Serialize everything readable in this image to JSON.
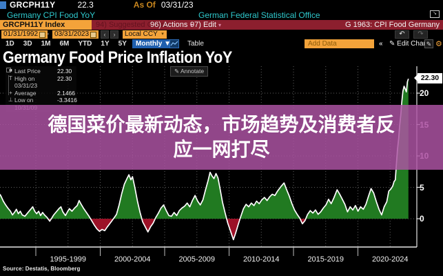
{
  "terminal": {
    "security_ticker": "GRCPH11Y",
    "last_value": "22.3",
    "as_of_label": "As Of",
    "as_of_date": "03/31/23",
    "description": "Germany CPI Food YoY",
    "source_org": "German Federal Statistical Office",
    "command_bar": {
      "ticker_box": "GRCPH11Y Index",
      "suggested_charts": "94) Suggested Charts",
      "actions": "96) Actions",
      "edit": "97) Edit",
      "chart_id": "G 1963: CPI Food Germany"
    },
    "date_bar": {
      "start_date": "01/31/1992",
      "separator": "-",
      "end_date": "03/31/2023",
      "prev": "‹",
      "next": "›",
      "currency": "Local CCY",
      "dropdown_caret": "▾",
      "undo": "↶",
      "redo": "↷"
    },
    "range_bar": {
      "ranges": [
        "1D",
        "3D",
        "1M",
        "6M",
        "YTD",
        "1Y",
        "5Y",
        "Max"
      ],
      "frequency": "Monthly ▼",
      "table": "Table",
      "add_data_placeholder": "Add Data",
      "collapse": "«",
      "edit_chart": "✎ Edit Chart",
      "gear": "⚙",
      "edit_chart_icon_glyph": "✎"
    }
  },
  "chart": {
    "title": "Germany Food Price Inflation YoY",
    "annotate": "✎ Annotate",
    "last_price_tag": "22.30",
    "legend": {
      "rows": [
        {
          "marker": "■",
          "label": "Last Price",
          "value": "22.30"
        },
        {
          "marker": "T",
          "label": "High on 03/31/23",
          "value": "22.30"
        },
        {
          "marker": "+",
          "label": "Average",
          "value": "2.1466"
        },
        {
          "marker": "⊥",
          "label": "Low on 10/31/09",
          "value": "-3.3416"
        }
      ]
    },
    "y_axis": {
      "tick_values": [
        20,
        15,
        10,
        5,
        0
      ],
      "tick_labels": [
        "20",
        "15",
        "10",
        "5",
        "0"
      ]
    },
    "x_axis": {
      "labels": [
        "1995-1999",
        "2000-2004",
        "2005-2009",
        "2010-2014",
        "2015-2019",
        "2020-2024"
      ]
    },
    "source": "Source: Destatis, Bloomberg",
    "colors": {
      "positive_fill": "#217a21",
      "negative_fill": "#9c1127",
      "line": "#ffffff",
      "grid": "rgba(255,255,255,0.38)",
      "axis": "#e8e8e8",
      "accent_orange": "#f3a33a",
      "command_bar_red": "#8c1f2e",
      "cyan_text": "#2fc9cd",
      "frequency_blue": "#1f5fae",
      "overlay_purple": "#ad53a3"
    }
  },
  "overlay_headline": {
    "line1": "德国菜价最新动态，市场趋势及消费者反",
    "line2": "应一网打尽"
  },
  "chart_data": {
    "type": "area",
    "series_name": "GRCPH11Y Index — Germany CPI Food YoY (%, monthly)",
    "x_unit": "year",
    "ylim": [
      -4.5,
      24
    ],
    "y_ticks": [
      0,
      5,
      10,
      15,
      20
    ],
    "x_block_labels": [
      "1995-1999",
      "2000-2004",
      "2005-2009",
      "2010-2014",
      "2015-2019",
      "2020-2024"
    ],
    "last_price": 22.3,
    "high": {
      "date": "03/31/23",
      "value": 22.3
    },
    "average": 2.1466,
    "low": {
      "date": "10/31/09",
      "value": -3.3416
    },
    "points": [
      [
        1992.0,
        3.9
      ],
      [
        1992.1,
        3.5
      ],
      [
        1992.25,
        2.8
      ],
      [
        1992.4,
        2.3
      ],
      [
        1992.6,
        1.7
      ],
      [
        1992.8,
        1.2
      ],
      [
        1992.95,
        0.6
      ],
      [
        1993.1,
        1.0
      ],
      [
        1993.25,
        1.5
      ],
      [
        1993.4,
        0.8
      ],
      [
        1993.55,
        1.2
      ],
      [
        1993.7,
        0.6
      ],
      [
        1993.9,
        0.4
      ],
      [
        1994.1,
        0.9
      ],
      [
        1994.3,
        1.4
      ],
      [
        1994.5,
        1.9
      ],
      [
        1994.65,
        1.2
      ],
      [
        1994.8,
        0.8
      ],
      [
        1994.95,
        1.2
      ],
      [
        1995.1,
        0.5
      ],
      [
        1995.25,
        1.0
      ],
      [
        1995.4,
        0.6
      ],
      [
        1995.6,
        0.2
      ],
      [
        1995.8,
        -0.4
      ],
      [
        1995.95,
        0.1
      ],
      [
        1996.1,
        0.6
      ],
      [
        1996.3,
        1.1
      ],
      [
        1996.5,
        1.6
      ],
      [
        1996.65,
        1.9
      ],
      [
        1996.8,
        1.1
      ],
      [
        1997.0,
        0.5
      ],
      [
        1997.15,
        1.1
      ],
      [
        1997.3,
        1.6
      ],
      [
        1997.5,
        1.2
      ],
      [
        1997.7,
        1.7
      ],
      [
        1997.9,
        2.1
      ],
      [
        1998.05,
        2.9
      ],
      [
        1998.2,
        2.3
      ],
      [
        1998.4,
        1.6
      ],
      [
        1998.6,
        1.0
      ],
      [
        1998.8,
        0.4
      ],
      [
        1999.0,
        -0.3
      ],
      [
        1999.2,
        -1.0
      ],
      [
        1999.4,
        -1.6
      ],
      [
        1999.6,
        -2.0
      ],
      [
        1999.8,
        -1.7
      ],
      [
        2000.0,
        -1.9
      ],
      [
        2000.2,
        -1.3
      ],
      [
        2000.45,
        -0.6
      ],
      [
        2000.7,
        0.1
      ],
      [
        2000.9,
        0.7
      ],
      [
        2001.1,
        2.2
      ],
      [
        2001.3,
        4.0
      ],
      [
        2001.5,
        5.5
      ],
      [
        2001.7,
        6.4
      ],
      [
        2001.85,
        7.0
      ],
      [
        2002.0,
        6.2
      ],
      [
        2002.12,
        6.7
      ],
      [
        2002.3,
        5.0
      ],
      [
        2002.5,
        2.8
      ],
      [
        2002.7,
        1.0
      ],
      [
        2002.9,
        -0.5
      ],
      [
        2003.1,
        -1.3
      ],
      [
        2003.3,
        -2.1
      ],
      [
        2003.5,
        -1.3
      ],
      [
        2003.7,
        -0.7
      ],
      [
        2003.9,
        0.2
      ],
      [
        2004.1,
        0.9
      ],
      [
        2004.3,
        1.7
      ],
      [
        2004.5,
        2.2
      ],
      [
        2004.7,
        1.3
      ],
      [
        2004.9,
        0.5
      ],
      [
        2005.1,
        0.4
      ],
      [
        2005.3,
        1.0
      ],
      [
        2005.5,
        0.5
      ],
      [
        2005.7,
        1.3
      ],
      [
        2005.9,
        1.7
      ],
      [
        2006.1,
        2.0
      ],
      [
        2006.3,
        2.5
      ],
      [
        2006.5,
        1.9
      ],
      [
        2006.7,
        2.9
      ],
      [
        2006.9,
        3.7
      ],
      [
        2007.1,
        2.8
      ],
      [
        2007.3,
        2.2
      ],
      [
        2007.5,
        3.0
      ],
      [
        2007.7,
        4.6
      ],
      [
        2007.9,
        6.1
      ],
      [
        2008.05,
        7.4
      ],
      [
        2008.2,
        6.8
      ],
      [
        2008.35,
        6.4
      ],
      [
        2008.5,
        7.2
      ],
      [
        2008.65,
        6.5
      ],
      [
        2008.8,
        4.9
      ],
      [
        2009.0,
        2.6
      ],
      [
        2009.2,
        0.9
      ],
      [
        2009.4,
        -0.7
      ],
      [
        2009.6,
        -1.9
      ],
      [
        2009.83,
        -3.34
      ],
      [
        2010.0,
        -2.3
      ],
      [
        2010.2,
        -0.9
      ],
      [
        2010.4,
        0.4
      ],
      [
        2010.6,
        1.6
      ],
      [
        2010.8,
        2.3
      ],
      [
        2011.0,
        1.9
      ],
      [
        2011.2,
        2.5
      ],
      [
        2011.4,
        2.1
      ],
      [
        2011.6,
        2.8
      ],
      [
        2011.8,
        2.4
      ],
      [
        2012.0,
        3.0
      ],
      [
        2012.2,
        3.4
      ],
      [
        2012.4,
        2.9
      ],
      [
        2012.6,
        3.5
      ],
      [
        2012.8,
        3.9
      ],
      [
        2013.0,
        3.7
      ],
      [
        2013.2,
        4.4
      ],
      [
        2013.45,
        5.1
      ],
      [
        2013.7,
        5.7
      ],
      [
        2013.9,
        4.6
      ],
      [
        2014.1,
        3.6
      ],
      [
        2014.3,
        2.4
      ],
      [
        2014.5,
        1.4
      ],
      [
        2014.7,
        0.7
      ],
      [
        2014.9,
        0.1
      ],
      [
        2015.1,
        -0.8
      ],
      [
        2015.3,
        -0.3
      ],
      [
        2015.5,
        0.7
      ],
      [
        2015.7,
        1.3
      ],
      [
        2015.9,
        0.9
      ],
      [
        2016.1,
        1.4
      ],
      [
        2016.3,
        0.7
      ],
      [
        2016.5,
        1.1
      ],
      [
        2016.7,
        1.7
      ],
      [
        2016.9,
        2.2
      ],
      [
        2017.1,
        3.1
      ],
      [
        2017.3,
        2.4
      ],
      [
        2017.5,
        3.3
      ],
      [
        2017.75,
        4.6
      ],
      [
        2017.95,
        3.9
      ],
      [
        2018.15,
        3.1
      ],
      [
        2018.35,
        2.3
      ],
      [
        2018.55,
        1.1
      ],
      [
        2018.75,
        1.9
      ],
      [
        2018.95,
        1.4
      ],
      [
        2019.15,
        2.1
      ],
      [
        2019.35,
        1.2
      ],
      [
        2019.55,
        1.9
      ],
      [
        2019.75,
        1.5
      ],
      [
        2019.95,
        2.3
      ],
      [
        2020.15,
        3.6
      ],
      [
        2020.35,
        4.8
      ],
      [
        2020.55,
        4.1
      ],
      [
        2020.75,
        2.7
      ],
      [
        2020.95,
        1.5
      ],
      [
        2021.15,
        0.6
      ],
      [
        2021.35,
        1.9
      ],
      [
        2021.55,
        2.7
      ],
      [
        2021.7,
        4.4
      ],
      [
        2021.85,
        4.7
      ],
      [
        2022.0,
        5.2
      ],
      [
        2022.1,
        5.9
      ],
      [
        2022.2,
        6.2
      ],
      [
        2022.28,
        8.6
      ],
      [
        2022.37,
        11.1
      ],
      [
        2022.45,
        12.7
      ],
      [
        2022.53,
        14.8
      ],
      [
        2022.62,
        16.6
      ],
      [
        2022.7,
        18.7
      ],
      [
        2022.78,
        20.3
      ],
      [
        2022.87,
        21.1
      ],
      [
        2022.95,
        20.7
      ],
      [
        2023.04,
        20.2
      ],
      [
        2023.12,
        21.8
      ],
      [
        2023.2,
        22.3
      ]
    ]
  }
}
